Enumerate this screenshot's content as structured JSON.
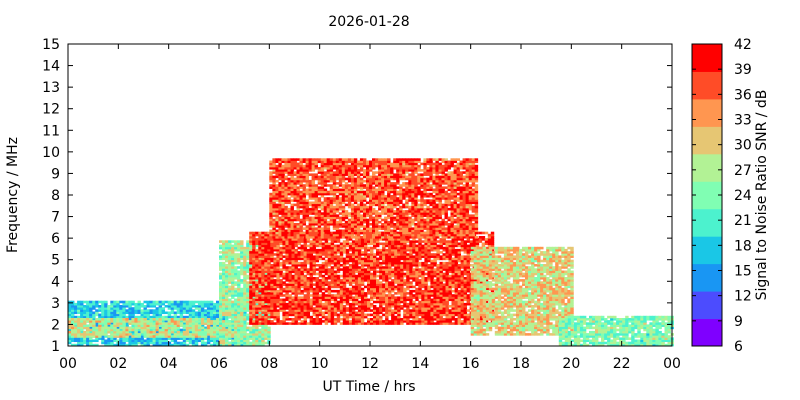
{
  "chart_data": {
    "type": "heatmap",
    "title": "2026-01-28",
    "xlabel": "UT Time / hrs",
    "ylabel": "Frequency / MHz",
    "colorbar_label": "Signal to Noise Ratio SNR / dB",
    "xlim": [
      0,
      24
    ],
    "ylim": [
      1,
      15
    ],
    "x_ticks": [
      "00",
      "02",
      "04",
      "06",
      "08",
      "10",
      "12",
      "14",
      "16",
      "18",
      "20",
      "22",
      "00"
    ],
    "y_ticks": [
      "1",
      "2",
      "3",
      "4",
      "5",
      "6",
      "7",
      "8",
      "9",
      "10",
      "11",
      "12",
      "13",
      "14",
      "15"
    ],
    "colorbar_ticks": [
      "6",
      "9",
      "12",
      "15",
      "18",
      "21",
      "24",
      "27",
      "30",
      "33",
      "36",
      "39",
      "42"
    ],
    "colorbar_range": [
      6,
      42
    ],
    "colorbar_colors": [
      "#7f00ff",
      "#4c4cfe",
      "#1996f3",
      "#1ac7e6",
      "#4cf2ce",
      "#80feb3",
      "#b2f295",
      "#e6c673",
      "#ff9650",
      "#ff4c27",
      "#ff0000"
    ],
    "regions": [
      {
        "name": "night-low-band",
        "x": [
          0,
          7
        ],
        "y": [
          1.0,
          3.1
        ],
        "snr": 18
      },
      {
        "name": "night-core",
        "x": [
          0,
          6
        ],
        "y": [
          1.4,
          2.3
        ],
        "snr": 28
      },
      {
        "name": "dawn-rise",
        "x": [
          6,
          8
        ],
        "y": [
          1.0,
          5.8
        ],
        "snr": 26
      },
      {
        "name": "day-main",
        "x": [
          7.2,
          16.8
        ],
        "y": [
          2.0,
          6.2
        ],
        "snr": 38
      },
      {
        "name": "day-peak",
        "x": [
          8.0,
          16.2
        ],
        "y": [
          6.0,
          9.6
        ],
        "snr": 37
      },
      {
        "name": "afternoon-fall",
        "x": [
          16.0,
          20.0
        ],
        "y": [
          1.5,
          5.5
        ],
        "snr": 30
      },
      {
        "name": "evening-low-band",
        "x": [
          19.5,
          24
        ],
        "y": [
          1.0,
          2.4
        ],
        "snr": 24
      }
    ]
  }
}
